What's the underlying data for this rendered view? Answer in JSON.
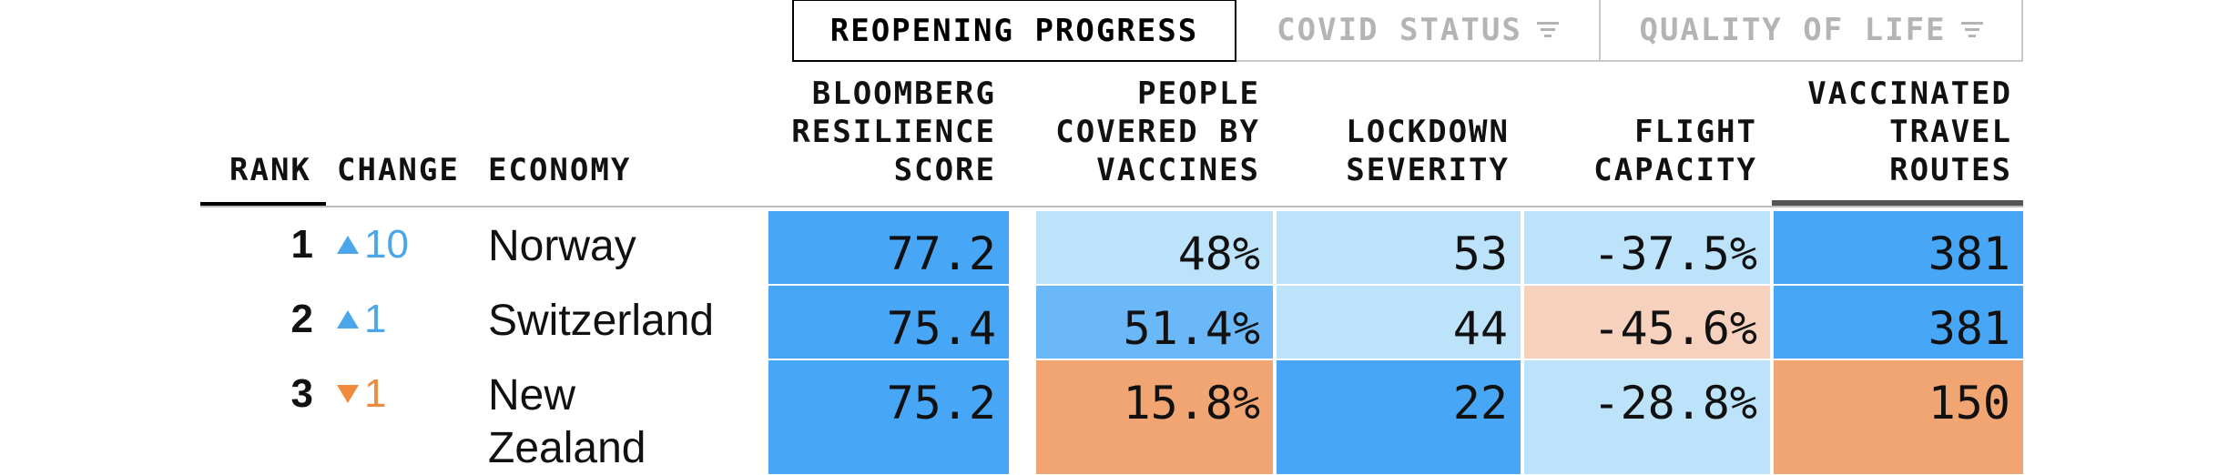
{
  "tabs": [
    {
      "label": "REOPENING PROGRESS",
      "active": true
    },
    {
      "label": "COVID STATUS",
      "active": false,
      "icon": "filter-icon"
    },
    {
      "label": "QUALITY OF LIFE",
      "active": false,
      "icon": "filter-icon"
    }
  ],
  "headers": {
    "rank": "RANK",
    "change": "CHANGE",
    "economy": "ECONOMY",
    "resilience": "BLOOMBERG\nRESILIENCE\nSCORE",
    "vaccines": "PEOPLE\nCOVERED BY\nVACCINES",
    "lockdown": "LOCKDOWN\nSEVERITY",
    "flight": "FLIGHT\nCAPACITY",
    "routes": "VACCINATED\nTRAVEL\nROUTES"
  },
  "colors": {
    "strong_blue": "#48a6f6",
    "mid_blue": "#6ab8f7",
    "light_blue": "#bde3fb",
    "light_orange": "#f6d1bd",
    "orange": "#f0a572",
    "up_arrow": "#4ca6ec",
    "down_arrow": "#f08a3c"
  },
  "rows": [
    {
      "rank": "1",
      "change_dir": "up",
      "change": "10",
      "economy": "Norway",
      "resilience": "77.2",
      "vaccines": "48%",
      "lockdown": "53",
      "flight": "-37.5%",
      "routes": "381",
      "colors": {
        "resilience": "#48a6f6",
        "vaccines": "#bde3fb",
        "lockdown": "#bde3fb",
        "flight": "#bde3fb",
        "routes": "#48a6f6"
      }
    },
    {
      "rank": "2",
      "change_dir": "up",
      "change": "1",
      "economy": "Switzerland",
      "resilience": "75.4",
      "vaccines": "51.4%",
      "lockdown": "44",
      "flight": "-45.6%",
      "routes": "381",
      "colors": {
        "resilience": "#48a6f6",
        "vaccines": "#6ab8f7",
        "lockdown": "#bde3fb",
        "flight": "#f6d1bd",
        "routes": "#48a6f6"
      }
    },
    {
      "rank": "3",
      "change_dir": "down",
      "change": "1",
      "economy": "New Zealand",
      "resilience": "75.2",
      "vaccines": "15.8%",
      "lockdown": "22",
      "flight": "-28.8%",
      "routes": "150",
      "colors": {
        "resilience": "#48a6f6",
        "vaccines": "#f0a572",
        "lockdown": "#48a6f6",
        "flight": "#bde3fb",
        "routes": "#f0a572"
      }
    }
  ]
}
